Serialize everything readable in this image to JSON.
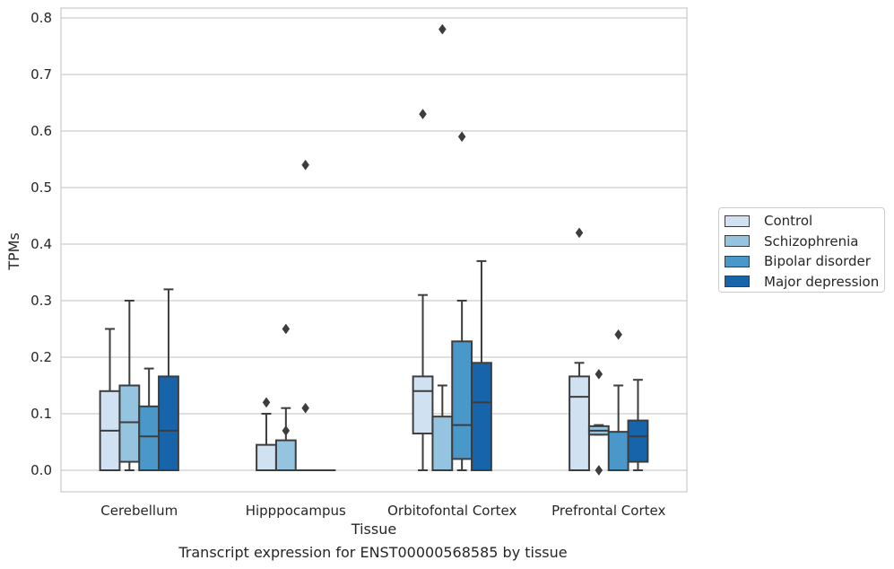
{
  "chart_data": {
    "type": "box",
    "caption": "Transcript expression for ENST00000568585 by tissue",
    "xlabel": "Tissue",
    "ylabel": "TPMs",
    "ylim": [
      -0.04,
      0.82
    ],
    "yticks": [
      0.0,
      0.1,
      0.2,
      0.3,
      0.4,
      0.5,
      0.6,
      0.7,
      0.8
    ],
    "ytick_labels": [
      "0.0",
      "0.1",
      "0.2",
      "0.3",
      "0.4",
      "0.5",
      "0.6",
      "0.7",
      "0.8"
    ],
    "grid": "horizontal",
    "legend_position": "right",
    "categories": [
      "Cerebellum",
      "Hipppocampus",
      "Orbitofontal Cortex",
      "Prefrontal Cortex"
    ],
    "series": [
      {
        "name": "Control",
        "color": "#d0e1f2",
        "boxes": [
          {
            "whislo": 0.0,
            "q1": 0.0,
            "med": 0.07,
            "q3": 0.14,
            "whishi": 0.25,
            "fliers": []
          },
          {
            "whislo": 0.0,
            "q1": 0.0,
            "med": 0.0,
            "q3": 0.045,
            "whishi": 0.1,
            "fliers": [
              0.12
            ]
          },
          {
            "whislo": 0.0,
            "q1": 0.065,
            "med": 0.14,
            "q3": 0.166,
            "whishi": 0.31,
            "fliers": [
              0.63
            ]
          },
          {
            "whislo": 0.0,
            "q1": 0.0,
            "med": 0.13,
            "q3": 0.166,
            "whishi": 0.19,
            "fliers": [
              0.42
            ]
          }
        ]
      },
      {
        "name": "Schizophrenia",
        "color": "#94c4df",
        "boxes": [
          {
            "whislo": 0.0,
            "q1": 0.015,
            "med": 0.085,
            "q3": 0.15,
            "whishi": 0.3,
            "fliers": []
          },
          {
            "whislo": 0.0,
            "q1": 0.0,
            "med": 0.0,
            "q3": 0.053,
            "whishi": 0.11,
            "fliers": [
              0.25,
              0.07
            ]
          },
          {
            "whislo": 0.0,
            "q1": 0.0,
            "med": 0.0,
            "q3": 0.095,
            "whishi": 0.15,
            "fliers": [
              0.78
            ]
          },
          {
            "whislo": 0.063,
            "q1": 0.063,
            "med": 0.07,
            "q3": 0.078,
            "whishi": 0.08,
            "fliers": [
              0.17,
              0.0
            ]
          }
        ]
      },
      {
        "name": "Bipolar disorder",
        "color": "#4a98c9",
        "boxes": [
          {
            "whislo": 0.0,
            "q1": 0.0,
            "med": 0.06,
            "q3": 0.113,
            "whishi": 0.18,
            "fliers": []
          },
          {
            "whislo": 0.0,
            "q1": 0.0,
            "med": 0.0,
            "q3": 0.0,
            "whishi": 0.0,
            "fliers": [
              0.54,
              0.11
            ]
          },
          {
            "whislo": 0.0,
            "q1": 0.02,
            "med": 0.08,
            "q3": 0.228,
            "whishi": 0.3,
            "fliers": [
              0.59
            ]
          },
          {
            "whislo": 0.0,
            "q1": 0.0,
            "med": 0.0,
            "q3": 0.068,
            "whishi": 0.15,
            "fliers": [
              0.24
            ]
          }
        ]
      },
      {
        "name": "Major depression",
        "color": "#1764ab",
        "boxes": [
          {
            "whislo": 0.0,
            "q1": 0.0,
            "med": 0.07,
            "q3": 0.166,
            "whishi": 0.32,
            "fliers": []
          },
          {
            "whislo": 0.0,
            "q1": 0.0,
            "med": 0.0,
            "q3": 0.0,
            "whishi": 0.0,
            "fliers": []
          },
          {
            "whislo": 0.0,
            "q1": 0.0,
            "med": 0.12,
            "q3": 0.19,
            "whishi": 0.37,
            "fliers": []
          },
          {
            "whislo": 0.0,
            "q1": 0.015,
            "med": 0.06,
            "q3": 0.088,
            "whishi": 0.16,
            "fliers": []
          }
        ]
      }
    ]
  }
}
